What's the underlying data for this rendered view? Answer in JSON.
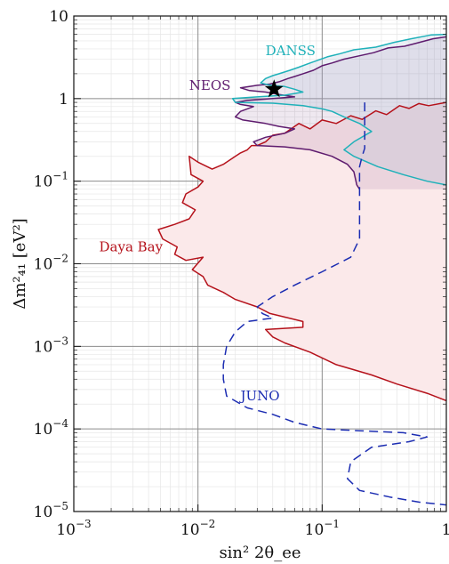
{
  "chart_data": {
    "type": "line",
    "xlabel": "sin² 2θ_ee",
    "ylabel": "Δm²₄₁ [eV²]",
    "xscale": "log",
    "yscale": "log",
    "xlim": [
      0.001,
      1
    ],
    "ylim": [
      1e-05,
      10
    ],
    "x_ticks": [
      {
        "value": 0.001,
        "base": "10",
        "exp": "−3"
      },
      {
        "value": 0.01,
        "base": "10",
        "exp": "−2"
      },
      {
        "value": 0.1,
        "base": "10",
        "exp": "−1"
      },
      {
        "value": 1,
        "base": "1",
        "exp": ""
      }
    ],
    "y_ticks": [
      {
        "value": 1e-05,
        "base": "10",
        "exp": "−5"
      },
      {
        "value": 0.0001,
        "base": "10",
        "exp": "−4"
      },
      {
        "value": 0.001,
        "base": "10",
        "exp": "−3"
      },
      {
        "value": 0.01,
        "base": "10",
        "exp": "−2"
      },
      {
        "value": 0.1,
        "base": "10",
        "exp": "−1"
      },
      {
        "value": 1,
        "base": "1",
        "exp": ""
      },
      {
        "value": 10,
        "base": "10",
        "exp": ""
      }
    ],
    "grid": true,
    "best_fit_point": {
      "x": 0.041,
      "y": 1.3
    },
    "series": [
      {
        "name": "Daya Bay",
        "color": "#b5121b",
        "fill": "#fbe9ea",
        "dash": "solid",
        "points": [
          [
            1,
            0.9
          ],
          [
            0.72,
            0.82
          ],
          [
            0.6,
            0.87
          ],
          [
            0.5,
            0.76
          ],
          [
            0.42,
            0.82
          ],
          [
            0.33,
            0.64
          ],
          [
            0.27,
            0.71
          ],
          [
            0.21,
            0.56
          ],
          [
            0.17,
            0.62
          ],
          [
            0.13,
            0.5
          ],
          [
            0.1,
            0.55
          ],
          [
            0.08,
            0.43
          ],
          [
            0.065,
            0.5
          ],
          [
            0.05,
            0.38
          ],
          [
            0.04,
            0.36
          ],
          [
            0.035,
            0.3
          ],
          [
            0.03,
            0.27
          ],
          [
            0.027,
            0.27
          ],
          [
            0.025,
            0.24
          ],
          [
            0.022,
            0.22
          ],
          [
            0.019,
            0.19
          ],
          [
            0.016,
            0.16
          ],
          [
            0.013,
            0.14
          ],
          [
            0.01,
            0.17
          ],
          [
            0.0085,
            0.2
          ],
          [
            0.0088,
            0.12
          ],
          [
            0.011,
            0.1
          ],
          [
            0.01,
            0.085
          ],
          [
            0.008,
            0.07
          ],
          [
            0.0075,
            0.055
          ],
          [
            0.0095,
            0.045
          ],
          [
            0.0085,
            0.035
          ],
          [
            0.0065,
            0.03
          ],
          [
            0.0048,
            0.026
          ],
          [
            0.0052,
            0.02
          ],
          [
            0.0068,
            0.016
          ],
          [
            0.0065,
            0.013
          ],
          [
            0.008,
            0.011
          ],
          [
            0.011,
            0.012
          ],
          [
            0.009,
            0.0085
          ],
          [
            0.011,
            0.007
          ],
          [
            0.012,
            0.0055
          ],
          [
            0.016,
            0.0045
          ],
          [
            0.02,
            0.0037
          ],
          [
            0.03,
            0.003
          ],
          [
            0.038,
            0.0025
          ],
          [
            0.07,
            0.002
          ],
          [
            0.07,
            0.0017
          ],
          [
            0.035,
            0.0016
          ],
          [
            0.04,
            0.0013
          ],
          [
            0.05,
            0.0011
          ],
          [
            0.08,
            0.00085
          ],
          [
            0.13,
            0.0006
          ],
          [
            0.25,
            0.00045
          ],
          [
            0.4,
            0.00035
          ],
          [
            0.7,
            0.00027
          ],
          [
            1,
            0.00022
          ]
        ]
      },
      {
        "name": "NEOS",
        "color": "#5e1b6e",
        "fill": "rgba(94,27,110,0.10)",
        "dash": "solid",
        "points": [
          [
            1,
            5.6
          ],
          [
            0.78,
            5.3
          ],
          [
            0.58,
            4.7
          ],
          [
            0.46,
            4.3
          ],
          [
            0.34,
            4.1
          ],
          [
            0.26,
            3.6
          ],
          [
            0.2,
            3.3
          ],
          [
            0.15,
            3.0
          ],
          [
            0.12,
            2.7
          ],
          [
            0.1,
            2.5
          ],
          [
            0.085,
            2.2
          ],
          [
            0.07,
            2.0
          ],
          [
            0.06,
            1.85
          ],
          [
            0.053,
            1.75
          ],
          [
            0.045,
            1.6
          ],
          [
            0.038,
            1.5
          ],
          [
            0.03,
            1.45
          ],
          [
            0.022,
            1.35
          ],
          [
            0.026,
            1.25
          ],
          [
            0.035,
            1.2
          ],
          [
            0.045,
            1.12
          ],
          [
            0.06,
            1.05
          ],
          [
            0.04,
            1.0
          ],
          [
            0.025,
            0.95
          ],
          [
            0.02,
            0.9
          ],
          [
            0.022,
            0.85
          ],
          [
            0.028,
            0.8
          ],
          [
            0.022,
            0.7
          ],
          [
            0.02,
            0.6
          ],
          [
            0.023,
            0.55
          ],
          [
            0.035,
            0.5
          ],
          [
            0.045,
            0.46
          ],
          [
            0.06,
            0.43
          ],
          [
            0.05,
            0.38
          ],
          [
            0.035,
            0.34
          ],
          [
            0.028,
            0.3
          ],
          [
            0.03,
            0.27
          ],
          [
            0.05,
            0.26
          ],
          [
            0.08,
            0.24
          ],
          [
            0.12,
            0.2
          ],
          [
            0.16,
            0.16
          ],
          [
            0.18,
            0.13
          ],
          [
            0.19,
            0.09
          ],
          [
            0.2,
            0.08
          ]
        ]
      },
      {
        "name": "DANSS",
        "color": "#1fb1b9",
        "fill": "rgba(175,190,215,0.25)",
        "dash": "solid",
        "points": [
          [
            1,
            6.0
          ],
          [
            0.75,
            5.9
          ],
          [
            0.52,
            5.3
          ],
          [
            0.38,
            4.8
          ],
          [
            0.27,
            4.2
          ],
          [
            0.18,
            3.9
          ],
          [
            0.14,
            3.5
          ],
          [
            0.11,
            3.2
          ],
          [
            0.08,
            2.7
          ],
          [
            0.065,
            2.4
          ],
          [
            0.055,
            2.2
          ],
          [
            0.045,
            2.0
          ],
          [
            0.04,
            1.9
          ],
          [
            0.035,
            1.75
          ],
          [
            0.032,
            1.55
          ],
          [
            0.038,
            1.45
          ],
          [
            0.05,
            1.4
          ],
          [
            0.06,
            1.3
          ],
          [
            0.07,
            1.2
          ],
          [
            0.05,
            1.1
          ],
          [
            0.03,
            1.05
          ],
          [
            0.019,
            1.0
          ],
          [
            0.02,
            0.9
          ],
          [
            0.04,
            0.88
          ],
          [
            0.07,
            0.82
          ],
          [
            0.1,
            0.75
          ],
          [
            0.12,
            0.7
          ],
          [
            0.15,
            0.6
          ],
          [
            0.2,
            0.5
          ],
          [
            0.25,
            0.4
          ],
          [
            0.18,
            0.3
          ],
          [
            0.15,
            0.24
          ],
          [
            0.18,
            0.2
          ],
          [
            0.28,
            0.15
          ],
          [
            0.45,
            0.12
          ],
          [
            0.7,
            0.1
          ],
          [
            1,
            0.09
          ]
        ]
      },
      {
        "name": "JUNO",
        "color": "#1c2db2",
        "fill": "none",
        "dash": "dashed",
        "points": [
          [
            0.22,
            0.9
          ],
          [
            0.22,
            0.5
          ],
          [
            0.22,
            0.25
          ],
          [
            0.21,
            0.2
          ],
          [
            0.2,
            0.15
          ],
          [
            0.2,
            0.09
          ],
          [
            0.2,
            0.05
          ],
          [
            0.2,
            0.02
          ],
          [
            0.17,
            0.012
          ],
          [
            0.1,
            0.008
          ],
          [
            0.06,
            0.0055
          ],
          [
            0.04,
            0.004
          ],
          [
            0.03,
            0.003
          ],
          [
            0.033,
            0.0025
          ],
          [
            0.04,
            0.0022
          ],
          [
            0.025,
            0.002
          ],
          [
            0.02,
            0.0015
          ],
          [
            0.017,
            0.001
          ],
          [
            0.016,
            0.0006
          ],
          [
            0.016,
            0.0004
          ],
          [
            0.017,
            0.00025
          ],
          [
            0.025,
            0.00018
          ],
          [
            0.04,
            0.00015
          ],
          [
            0.06,
            0.00012
          ],
          [
            0.1,
            0.0001
          ],
          [
            0.2,
            9.5e-05
          ],
          [
            0.45,
            9e-05
          ],
          [
            0.7,
            8e-05
          ],
          [
            0.5,
            7e-05
          ],
          [
            0.25,
            6e-05
          ],
          [
            0.17,
            4e-05
          ],
          [
            0.16,
            2.5e-05
          ],
          [
            0.2,
            1.8e-05
          ],
          [
            0.35,
            1.5e-05
          ],
          [
            0.6,
            1.3e-05
          ],
          [
            1,
            1.2e-05
          ]
        ]
      }
    ],
    "series_labels": [
      {
        "text": "DANSS",
        "x": 0.035,
        "y": 3.8,
        "color": "#1fb1b9"
      },
      {
        "text": "NEOS",
        "x": 0.0085,
        "y": 1.45,
        "color": "#5e1b6e"
      },
      {
        "text": "Daya Bay",
        "x": 0.0016,
        "y": 0.016,
        "color": "#b5121b"
      },
      {
        "text": "JUNO",
        "x": 0.022,
        "y": 0.00025,
        "color": "#1c2db2"
      }
    ]
  }
}
